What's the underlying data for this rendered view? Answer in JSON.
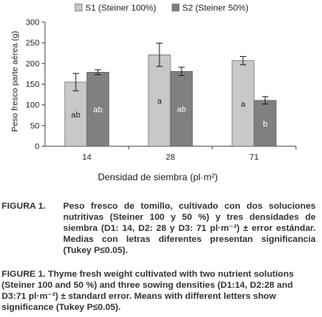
{
  "chart_data": {
    "type": "bar",
    "xlabel": "Densidad de siembra (pl·m²)",
    "ylabel": "Peso fresco parte aérea (g)",
    "categories": [
      "14",
      "28",
      "71"
    ],
    "ylim": [
      0,
      300
    ],
    "yticks": [
      "0",
      "50",
      "100",
      "150",
      "200",
      "250",
      "300"
    ],
    "legend_position": "top",
    "series": [
      {
        "name": "S1 (Steiner 100%)",
        "color": "#c8c8c8",
        "values": [
          155,
          221,
          207
        ],
        "errors": [
          21,
          28,
          10
        ],
        "letters": [
          "ab",
          "a",
          "a"
        ]
      },
      {
        "name": "S2 (Steiner 50%)",
        "color": "#808080",
        "values": [
          179,
          181,
          111
        ],
        "errors": [
          6,
          10,
          9
        ],
        "letters": [
          "ab",
          "ab",
          "b"
        ]
      }
    ]
  },
  "caption_es": {
    "label": "FIGURA 1.",
    "text": "Peso fresco de tomillo, cultivado con dos soluciones nutritivas (Steiner 100 y 50 %) y tres densidades de siembra (D1: 14, D2: 28 y D3: 71 pl·m⁻²) ± error estándar. Medias con letras diferentes presentan significancia (Tukey P≤0.05)."
  },
  "caption_en": {
    "label": "FIGURE 1.",
    "text": "Thyme fresh weight cultivated with two nutrient solutions (Steiner 100 and 50 %) and three sowing densities (D1:14, D2:28 and D3:71 pl·m⁻²) ± standard error. Means with different letters show significance (Tukey P≤0.05)."
  }
}
